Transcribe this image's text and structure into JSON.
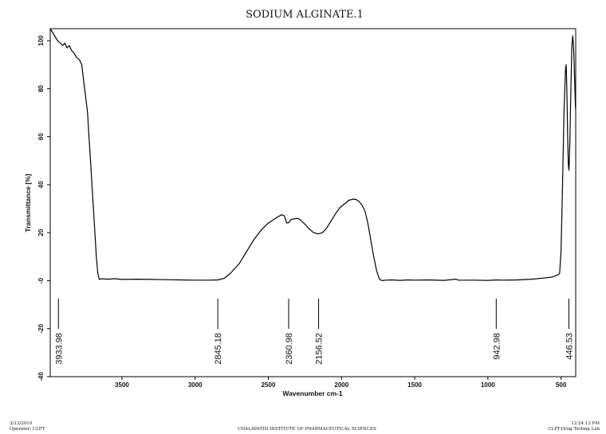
{
  "footer": {
    "date": "3/13/2019",
    "operator": "Operator: CLPT",
    "institution": "CHALAPATHI INSTITUTE OF PHARMACEUTICAL SCIENCES",
    "time": "12:24:13 PM",
    "lab": "CLPT-Drug Testing Lab"
  },
  "chart_data": {
    "type": "line",
    "title": "SODIUM ALGINATE.1",
    "xlabel": "Wavenumber cm-1",
    "ylabel": "Transmittance [%]",
    "xlim": [
      3990,
      400
    ],
    "ylim": [
      -40,
      105
    ],
    "x_reversed": true,
    "grid": false,
    "x_ticks": [
      3500,
      3000,
      2500,
      2000,
      1500,
      1000,
      500
    ],
    "y_ticks": [
      -40,
      -20,
      0,
      20,
      40,
      60,
      80,
      100
    ],
    "y_tick_labels": [
      "-40",
      "-20",
      "-0",
      "20",
      "40",
      "60",
      "80",
      "100"
    ],
    "peak_labels": [
      "3933.98",
      "2845.18",
      "2360.98",
      "2156.52",
      "942.98",
      "446.53"
    ],
    "peaks": [
      3933.98,
      2845.18,
      2360.98,
      2156.52,
      942.98,
      446.53
    ],
    "series": [
      {
        "color": "#000000",
        "points": [
          [
            3990,
            105
          ],
          [
            3960,
            102
          ],
          [
            3940,
            100
          ],
          [
            3920,
            99
          ],
          [
            3905,
            98
          ],
          [
            3890,
            99
          ],
          [
            3875,
            97
          ],
          [
            3860,
            98
          ],
          [
            3845,
            96
          ],
          [
            3830,
            95
          ],
          [
            3810,
            93
          ],
          [
            3790,
            92
          ],
          [
            3775,
            90
          ],
          [
            3765,
            85
          ],
          [
            3755,
            80
          ],
          [
            3745,
            75
          ],
          [
            3735,
            70
          ],
          [
            3725,
            60
          ],
          [
            3715,
            50
          ],
          [
            3705,
            40
          ],
          [
            3695,
            30
          ],
          [
            3685,
            20
          ],
          [
            3675,
            10
          ],
          [
            3665,
            3
          ],
          [
            3655,
            0.5
          ],
          [
            3640,
            0.8
          ],
          [
            3600,
            0.6
          ],
          [
            3550,
            0.8
          ],
          [
            3500,
            0.5
          ],
          [
            3400,
            0.6
          ],
          [
            3300,
            0.5
          ],
          [
            3200,
            0.4
          ],
          [
            3100,
            0.3
          ],
          [
            3000,
            0.2
          ],
          [
            2900,
            0.2
          ],
          [
            2845,
            0.3
          ],
          [
            2800,
            1
          ],
          [
            2760,
            3
          ],
          [
            2700,
            7
          ],
          [
            2650,
            12
          ],
          [
            2600,
            17
          ],
          [
            2550,
            21
          ],
          [
            2500,
            24
          ],
          [
            2450,
            26
          ],
          [
            2410,
            27.5
          ],
          [
            2390,
            27
          ],
          [
            2375,
            24
          ],
          [
            2360,
            24.2
          ],
          [
            2345,
            25.5
          ],
          [
            2320,
            25.8
          ],
          [
            2300,
            26
          ],
          [
            2280,
            25.3
          ],
          [
            2250,
            23.5
          ],
          [
            2220,
            21.5
          ],
          [
            2190,
            20
          ],
          [
            2160,
            19.5
          ],
          [
            2130,
            20
          ],
          [
            2100,
            22
          ],
          [
            2070,
            25
          ],
          [
            2040,
            28
          ],
          [
            2010,
            30.5
          ],
          [
            1980,
            32
          ],
          [
            1950,
            33.5
          ],
          [
            1920,
            34
          ],
          [
            1900,
            33.8
          ],
          [
            1880,
            33
          ],
          [
            1860,
            31.5
          ],
          [
            1840,
            29
          ],
          [
            1820,
            24
          ],
          [
            1800,
            17
          ],
          [
            1780,
            10
          ],
          [
            1760,
            4
          ],
          [
            1740,
            0.5
          ],
          [
            1720,
            0
          ],
          [
            1700,
            0.2
          ],
          [
            1650,
            0.3
          ],
          [
            1600,
            0.1
          ],
          [
            1550,
            0.3
          ],
          [
            1500,
            0.2
          ],
          [
            1400,
            0.3
          ],
          [
            1300,
            0.1
          ],
          [
            1220,
            0.6
          ],
          [
            1200,
            0.2
          ],
          [
            1100,
            0.2
          ],
          [
            1000,
            0.1
          ],
          [
            942,
            0.3
          ],
          [
            900,
            0.2
          ],
          [
            800,
            0.3
          ],
          [
            700,
            0.6
          ],
          [
            600,
            1.2
          ],
          [
            560,
            1.5
          ],
          [
            520,
            2.5
          ],
          [
            510,
            3
          ],
          [
            500,
            12
          ],
          [
            490,
            40
          ],
          [
            480,
            70
          ],
          [
            470,
            88
          ],
          [
            465,
            90
          ],
          [
            460,
            78
          ],
          [
            455,
            60
          ],
          [
            450,
            48
          ],
          [
            446,
            46
          ],
          [
            440,
            58
          ],
          [
            432,
            82
          ],
          [
            426,
            98
          ],
          [
            420,
            102
          ],
          [
            414,
            97
          ],
          [
            408,
            86
          ],
          [
            402,
            73
          ],
          [
            400,
            71
          ]
        ]
      }
    ]
  }
}
